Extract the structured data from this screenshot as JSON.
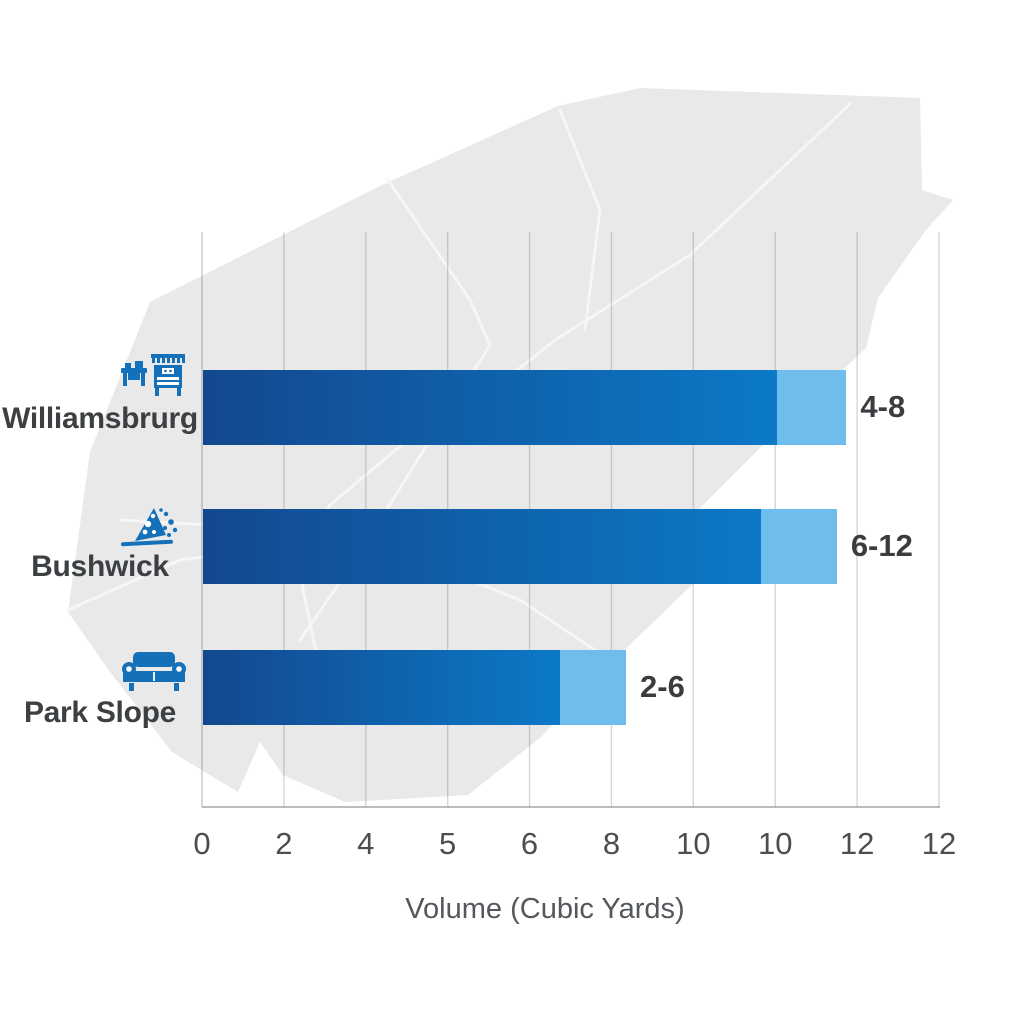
{
  "chart_data": {
    "type": "bar",
    "orientation": "horizontal",
    "xlabel": "Volume (Cubic Yards)",
    "x_ticks": [
      "0",
      "2",
      "4",
      "5",
      "6",
      "8",
      "10",
      "10",
      "12",
      "12"
    ],
    "axis_range_units": [
      0,
      12
    ],
    "grid": true,
    "categories": [
      "Williamsbrurg",
      "Bushwick",
      "Park Slope"
    ],
    "rows": [
      {
        "label": "Williamsbrurg",
        "icon": "furniture-icon",
        "value_label": "4-8",
        "range_low": 4,
        "range_high": 8,
        "bar_main_pct": 77.9,
        "bar_tip_pct": 9.4
      },
      {
        "label": "Bushwick",
        "icon": "debris-icon",
        "value_label": "6-12",
        "range_low": 6,
        "range_high": 12,
        "bar_main_pct": 75.7,
        "bar_tip_pct": 10.3
      },
      {
        "label": "Park Slope",
        "icon": "sofa-icon",
        "value_label": "2-6",
        "range_low": 2,
        "range_high": 6,
        "bar_main_pct": 48.4,
        "bar_tip_pct": 9.0
      }
    ]
  },
  "colors": {
    "bar_gradient_start": "#13488e",
    "bar_gradient_end": "#0b79c7",
    "bar_tip": "#6fbdec",
    "icon_blue": "#1470b8",
    "map_fill": "#e9e9ea",
    "street": "#f7f7f8",
    "grid_line": "rgba(105,105,115,0.27)",
    "axis_line": "rgba(105,105,115,0.45)",
    "label_text": "#3d4043"
  }
}
